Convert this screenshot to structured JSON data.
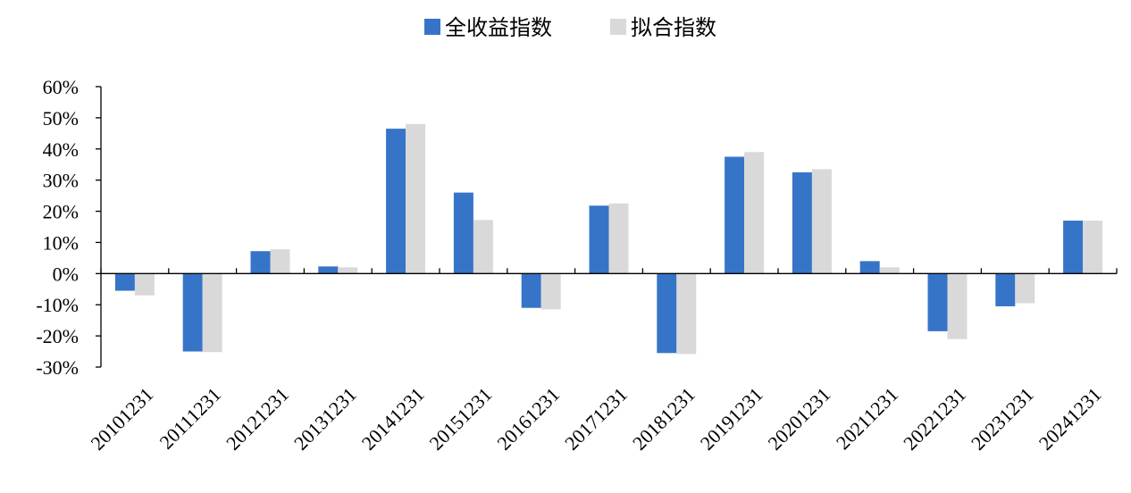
{
  "chart_data": {
    "type": "bar",
    "categories": [
      "20101231",
      "20111231",
      "20121231",
      "20131231",
      "20141231",
      "20151231",
      "20161231",
      "20171231",
      "20181231",
      "20191231",
      "20201231",
      "20211231",
      "20221231",
      "20231231",
      "20241231"
    ],
    "series": [
      {
        "name": "全收益指数",
        "color": "#3674C8",
        "values": [
          -5.5,
          -25.0,
          7.2,
          2.3,
          46.5,
          26.0,
          -11.0,
          21.8,
          -25.5,
          37.5,
          32.5,
          4.0,
          -18.5,
          -10.5,
          17.0
        ]
      },
      {
        "name": "拟合指数",
        "color": "#D9D9D9",
        "values": [
          -7.0,
          -25.2,
          7.8,
          2.0,
          48.0,
          17.2,
          -11.5,
          22.5,
          -25.8,
          39.0,
          33.5,
          2.0,
          -21.0,
          -9.5,
          17.0
        ]
      }
    ],
    "y_ticks": [
      "60%",
      "50%",
      "40%",
      "30%",
      "20%",
      "10%",
      "0%",
      "-10%",
      "-20%",
      "-30%"
    ],
    "y_tick_values": [
      60,
      50,
      40,
      30,
      20,
      10,
      0,
      -10,
      -20,
      -30
    ],
    "ylim": [
      -30,
      60
    ],
    "legend_position": "top-center",
    "grid": false
  }
}
